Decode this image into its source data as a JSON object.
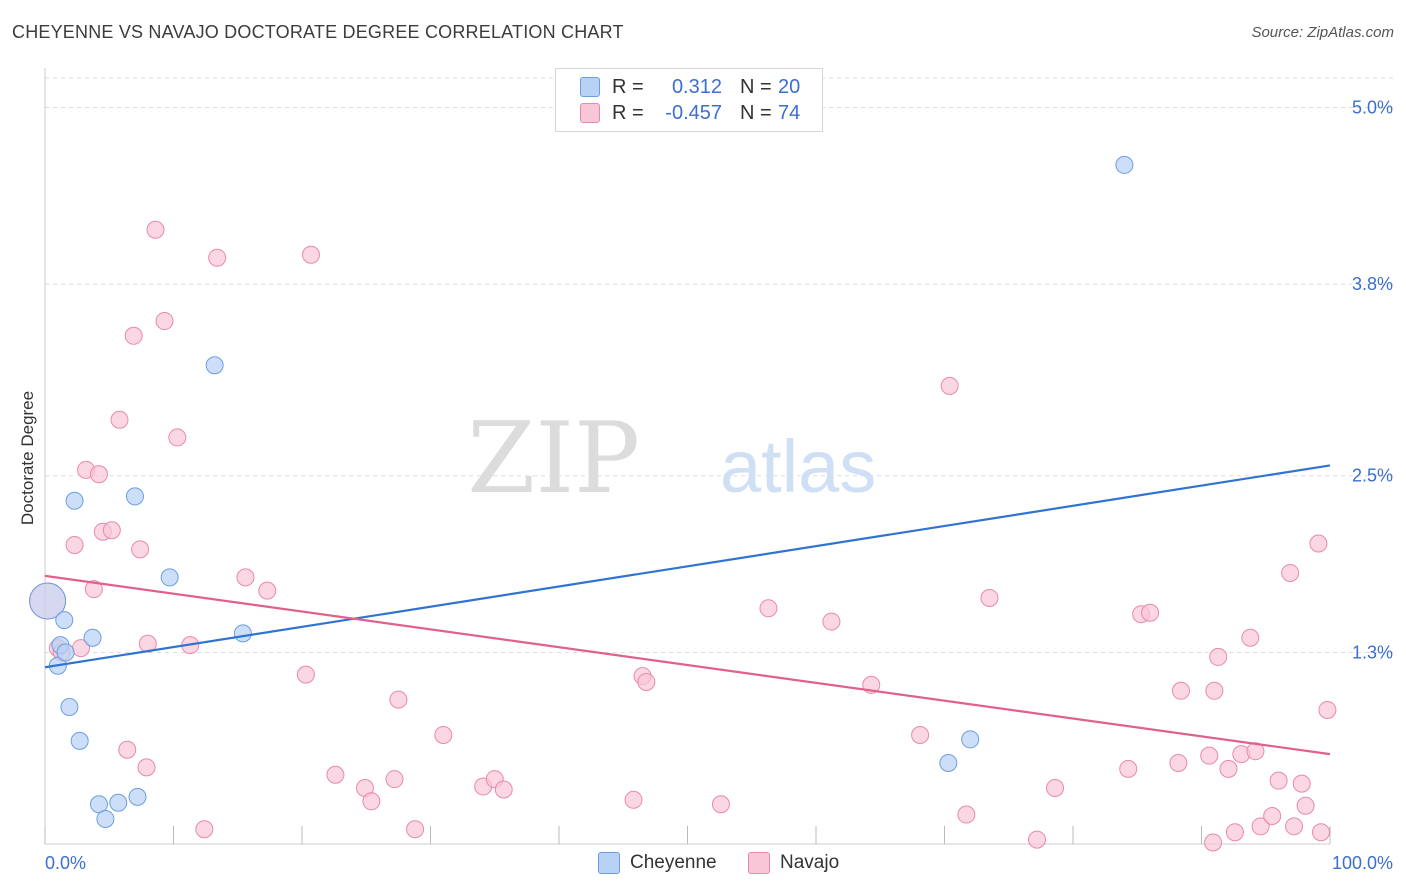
{
  "title": "CHEYENNE VS NAVAJO DOCTORATE DEGREE CORRELATION CHART",
  "source": "Source: ZipAtlas.com",
  "watermark": {
    "zip": "ZIP",
    "atlas": "atlas"
  },
  "legend": {
    "rows": [
      {
        "r_label": "R =",
        "r_value": "0.312",
        "n_label": "N =",
        "n_value": "20"
      },
      {
        "r_label": "R =",
        "r_value": "-0.457",
        "n_label": "N =",
        "n_value": "74"
      }
    ]
  },
  "bottom_legend": {
    "cheyenne": "Cheyenne",
    "navajo": "Navajo"
  },
  "colors": {
    "cheyenne_fill": "#b8d2f5",
    "cheyenne_stroke": "#6c9ee0",
    "cheyenne_line": "#2f74d0",
    "navajo_fill": "#f8c6d6",
    "navajo_stroke": "#e98aa8",
    "navajo_line": "#e0608e",
    "tick_label": "#3b6fd0",
    "grid": "#dddddd"
  },
  "chart_data": {
    "type": "scatter",
    "title": "CHEYENNE VS NAVAJO DOCTORATE DEGREE CORRELATION CHART",
    "xlabel": "",
    "ylabel": "Doctorate Degree",
    "xlim": [
      0,
      100
    ],
    "ylim": [
      0,
      5.0
    ],
    "x_tick_labels": [
      "0.0%",
      "100.0%"
    ],
    "y_ticks": [
      1.3,
      2.5,
      3.8,
      5.0
    ],
    "y_tick_labels": [
      "1.3%",
      "2.5%",
      "3.8%",
      "5.0%"
    ],
    "series": [
      {
        "name": "Cheyenne",
        "r": 0.312,
        "n": 20,
        "trend": {
          "x": [
            0,
            100
          ],
          "y": [
            1.2,
            2.57
          ]
        },
        "points": [
          {
            "x": 0.2,
            "y": 1.65,
            "big": true
          },
          {
            "x": 1.0,
            "y": 1.21
          },
          {
            "x": 1.2,
            "y": 1.35
          },
          {
            "x": 1.6,
            "y": 1.3
          },
          {
            "x": 1.5,
            "y": 1.52
          },
          {
            "x": 1.9,
            "y": 0.93
          },
          {
            "x": 2.3,
            "y": 2.33
          },
          {
            "x": 2.7,
            "y": 0.7
          },
          {
            "x": 3.7,
            "y": 1.4
          },
          {
            "x": 4.2,
            "y": 0.27
          },
          {
            "x": 4.7,
            "y": 0.17
          },
          {
            "x": 5.7,
            "y": 0.28
          },
          {
            "x": 7.0,
            "y": 2.36
          },
          {
            "x": 7.2,
            "y": 0.32
          },
          {
            "x": 9.7,
            "y": 1.81
          },
          {
            "x": 13.2,
            "y": 3.25
          },
          {
            "x": 15.4,
            "y": 1.43
          },
          {
            "x": 70.3,
            "y": 0.55
          },
          {
            "x": 72.0,
            "y": 0.71
          },
          {
            "x": 84.0,
            "y": 4.61
          }
        ]
      },
      {
        "name": "Navajo",
        "r": -0.457,
        "n": 74,
        "trend": {
          "x": [
            0,
            100
          ],
          "y": [
            1.82,
            0.61
          ]
        },
        "points": [
          {
            "x": 0.2,
            "y": 1.65,
            "big": true
          },
          {
            "x": 1.0,
            "y": 1.33
          },
          {
            "x": 1.3,
            "y": 1.3
          },
          {
            "x": 2.3,
            "y": 2.03
          },
          {
            "x": 2.8,
            "y": 1.33
          },
          {
            "x": 3.2,
            "y": 2.54
          },
          {
            "x": 3.8,
            "y": 1.73
          },
          {
            "x": 4.2,
            "y": 2.51
          },
          {
            "x": 4.5,
            "y": 2.12
          },
          {
            "x": 5.2,
            "y": 2.13
          },
          {
            "x": 5.8,
            "y": 2.88
          },
          {
            "x": 6.4,
            "y": 0.64
          },
          {
            "x": 6.9,
            "y": 3.45
          },
          {
            "x": 7.4,
            "y": 2.0
          },
          {
            "x": 7.9,
            "y": 0.52
          },
          {
            "x": 8.0,
            "y": 1.36
          },
          {
            "x": 8.6,
            "y": 4.17
          },
          {
            "x": 9.3,
            "y": 3.55
          },
          {
            "x": 10.3,
            "y": 2.76
          },
          {
            "x": 11.3,
            "y": 1.35
          },
          {
            "x": 12.4,
            "y": 0.1
          },
          {
            "x": 13.4,
            "y": 3.98
          },
          {
            "x": 15.6,
            "y": 1.81
          },
          {
            "x": 17.3,
            "y": 1.72
          },
          {
            "x": 20.3,
            "y": 1.15
          },
          {
            "x": 20.7,
            "y": 4.0
          },
          {
            "x": 22.6,
            "y": 0.47
          },
          {
            "x": 24.9,
            "y": 0.38
          },
          {
            "x": 25.4,
            "y": 0.29
          },
          {
            "x": 27.2,
            "y": 0.44
          },
          {
            "x": 27.5,
            "y": 0.98
          },
          {
            "x": 28.8,
            "y": 0.1
          },
          {
            "x": 31.0,
            "y": 0.74
          },
          {
            "x": 34.1,
            "y": 0.39
          },
          {
            "x": 35.0,
            "y": 0.44
          },
          {
            "x": 35.7,
            "y": 0.37
          },
          {
            "x": 45.8,
            "y": 0.3
          },
          {
            "x": 46.5,
            "y": 1.14
          },
          {
            "x": 46.8,
            "y": 1.1
          },
          {
            "x": 52.6,
            "y": 0.27
          },
          {
            "x": 56.3,
            "y": 1.6
          },
          {
            "x": 61.2,
            "y": 1.51
          },
          {
            "x": 64.3,
            "y": 1.08
          },
          {
            "x": 68.1,
            "y": 0.74
          },
          {
            "x": 70.4,
            "y": 3.11
          },
          {
            "x": 71.7,
            "y": 0.2
          },
          {
            "x": 73.5,
            "y": 1.67
          },
          {
            "x": 77.2,
            "y": 0.03
          },
          {
            "x": 78.6,
            "y": 0.38
          },
          {
            "x": 84.3,
            "y": 0.51
          },
          {
            "x": 85.3,
            "y": 1.56
          },
          {
            "x": 86.0,
            "y": 1.57
          },
          {
            "x": 88.2,
            "y": 0.55
          },
          {
            "x": 88.4,
            "y": 1.04
          },
          {
            "x": 90.6,
            "y": 0.6
          },
          {
            "x": 90.9,
            "y": 0.01
          },
          {
            "x": 91.0,
            "y": 1.04
          },
          {
            "x": 91.3,
            "y": 1.27
          },
          {
            "x": 92.1,
            "y": 0.51
          },
          {
            "x": 92.6,
            "y": 0.08
          },
          {
            "x": 93.1,
            "y": 0.61
          },
          {
            "x": 93.8,
            "y": 1.4
          },
          {
            "x": 94.2,
            "y": 0.63
          },
          {
            "x": 94.6,
            "y": 0.12
          },
          {
            "x": 95.5,
            "y": 0.19
          },
          {
            "x": 96.0,
            "y": 0.43
          },
          {
            "x": 96.9,
            "y": 1.84
          },
          {
            "x": 97.2,
            "y": 0.12
          },
          {
            "x": 97.8,
            "y": 0.41
          },
          {
            "x": 98.1,
            "y": 0.26
          },
          {
            "x": 99.1,
            "y": 2.04
          },
          {
            "x": 99.3,
            "y": 0.08
          },
          {
            "x": 99.8,
            "y": 0.91
          }
        ]
      }
    ]
  }
}
